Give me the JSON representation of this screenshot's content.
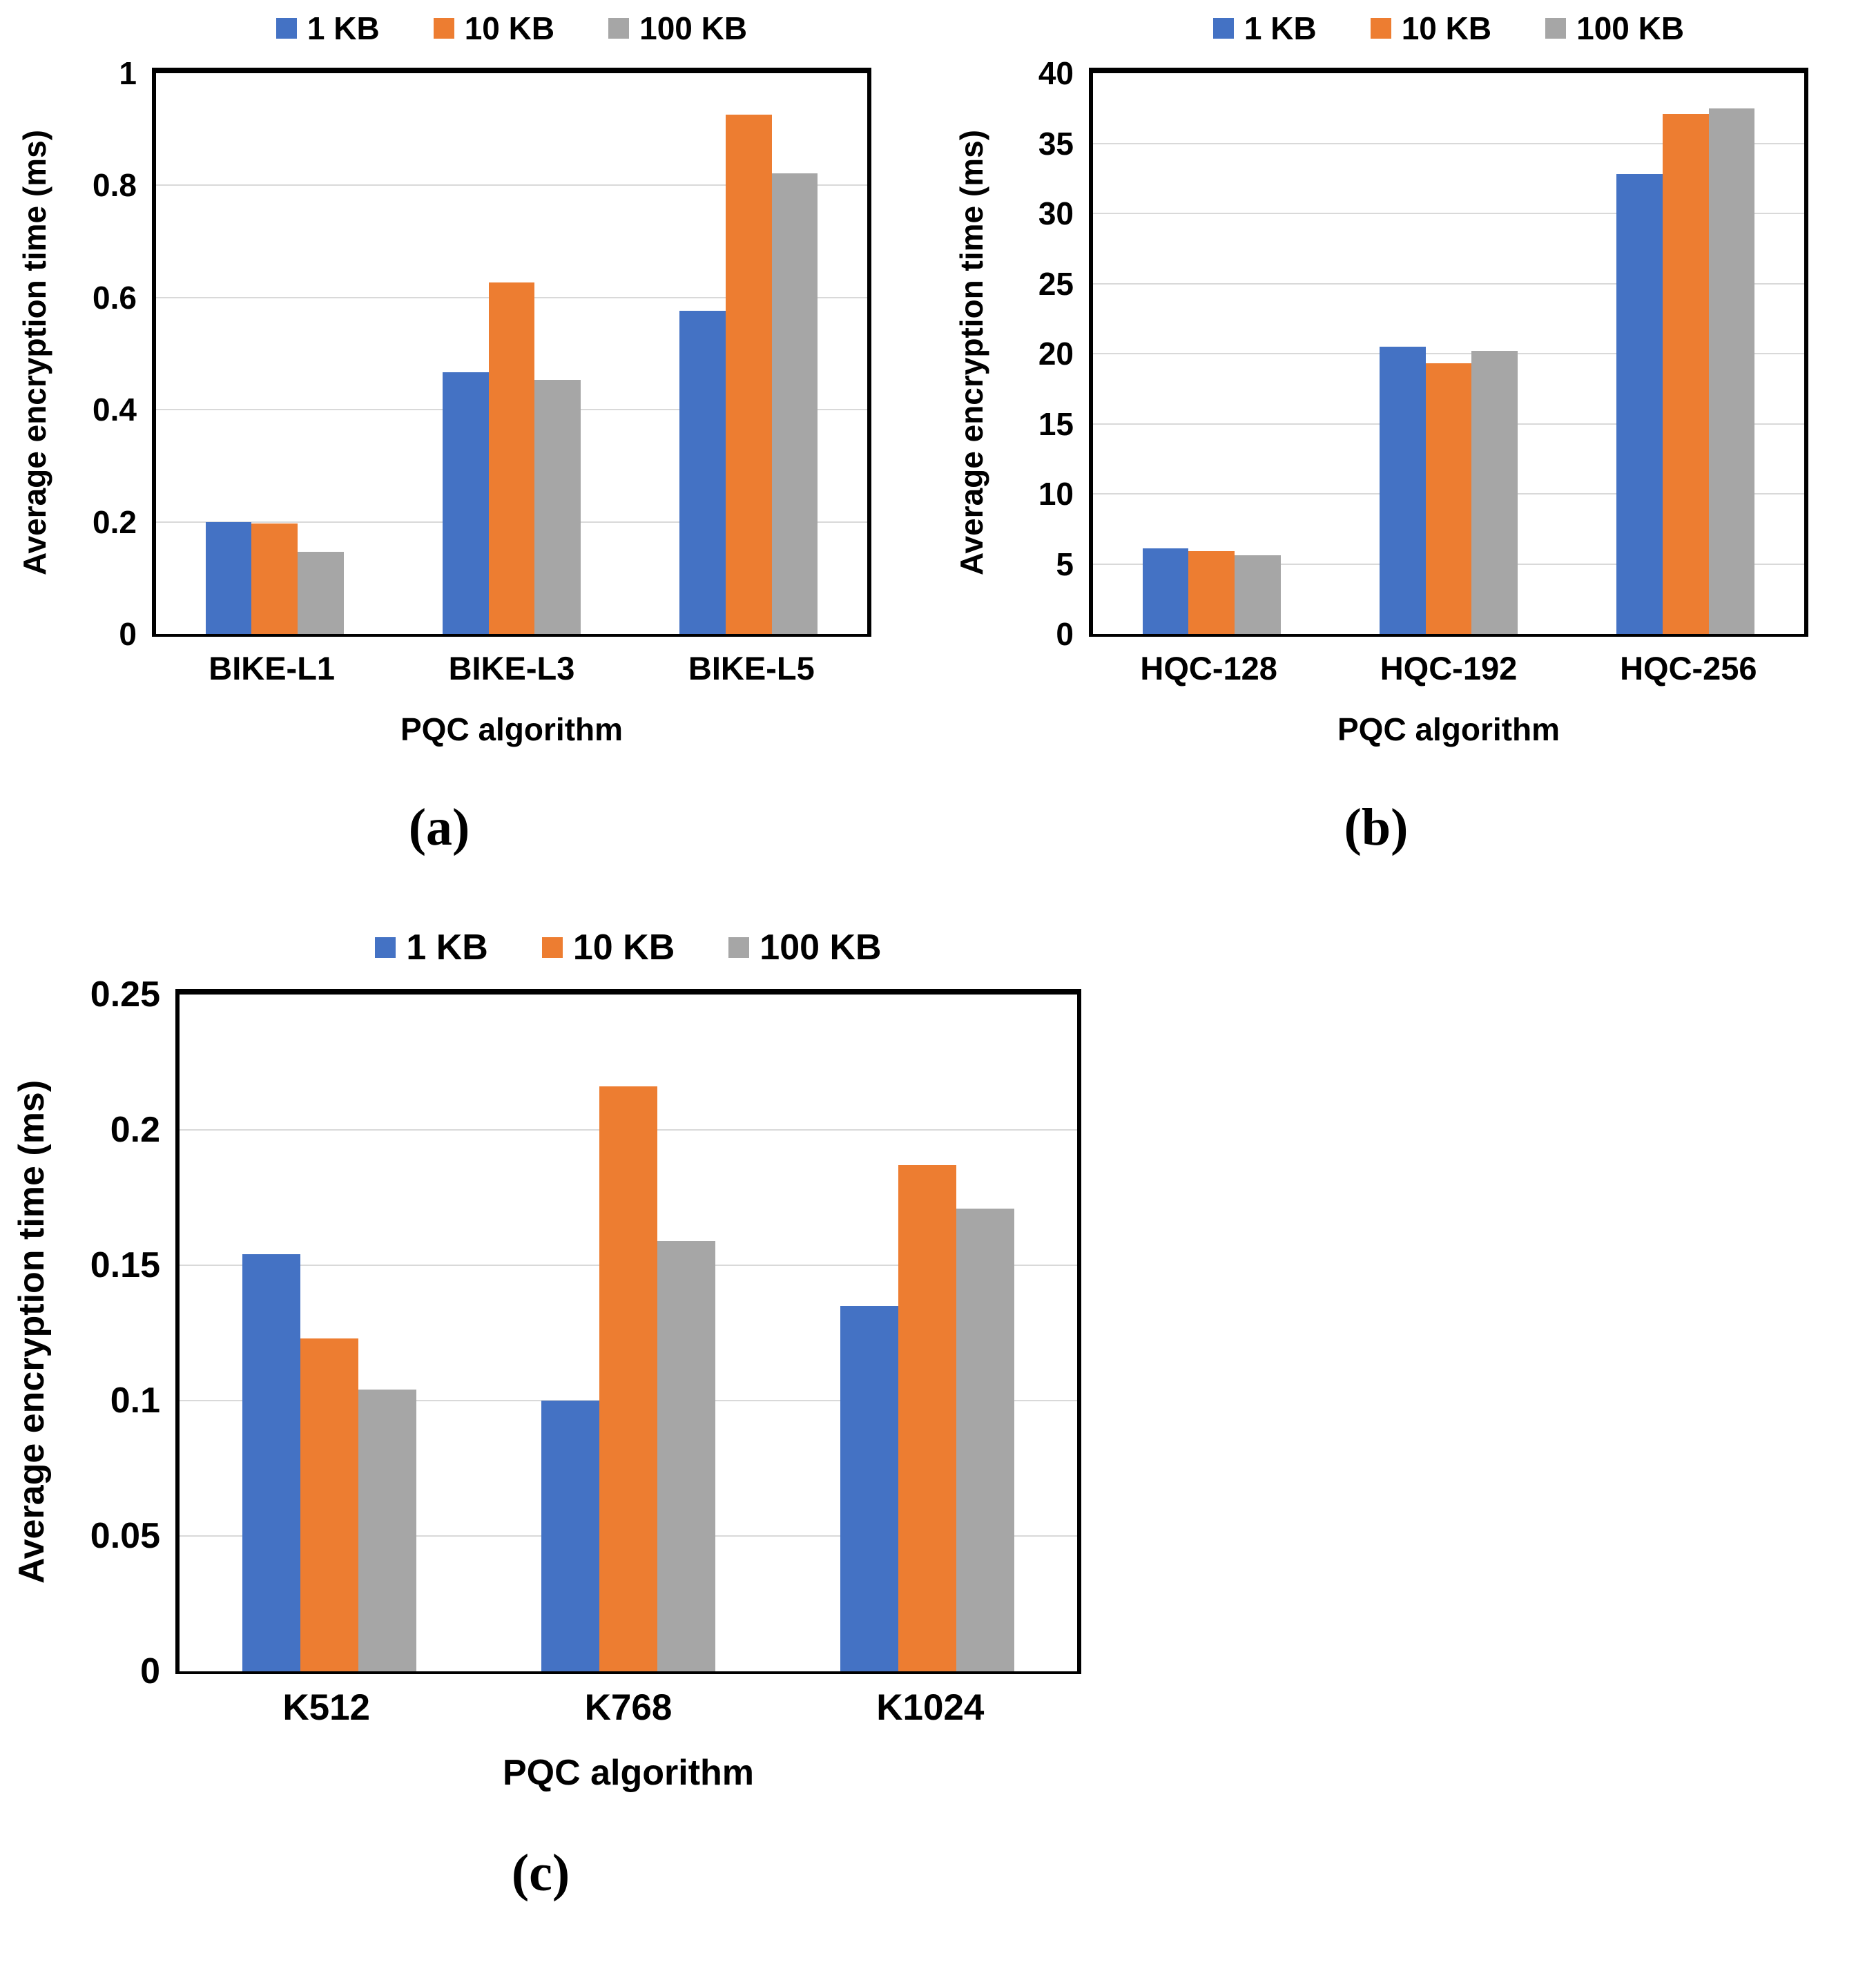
{
  "figure": {
    "background_color": "#ffffff",
    "frame_color": "#000000",
    "gridline_color": "#D9D9D9",
    "series_colors": {
      "1kb_blue": "#4472C4",
      "10kb_orange": "#ED7D31",
      "100kb_gray": "#A6A6A6"
    }
  },
  "chart_data": [
    {
      "id": "a",
      "type": "bar",
      "panel_label": "(a)",
      "title": "",
      "xlabel": "PQC algorithm",
      "ylabel": "Average encryption time (ms)",
      "categories": [
        "BIKE-L1",
        "BIKE-L3",
        "BIKE-L5"
      ],
      "series": [
        {
          "name": "1 KB",
          "color": "#4472C4",
          "values": [
            0.2,
            0.467,
            0.576
          ]
        },
        {
          "name": "10 KB",
          "color": "#ED7D31",
          "values": [
            0.197,
            0.627,
            0.926
          ]
        },
        {
          "name": "100 KB",
          "color": "#A6A6A6",
          "values": [
            0.146,
            0.453,
            0.821
          ]
        }
      ],
      "ylim": [
        0,
        1
      ],
      "yticks": [
        0,
        0.2,
        0.4,
        0.6,
        0.8,
        1
      ],
      "ytick_labels": [
        "0",
        "0.2",
        "0.4",
        "0.6",
        "0.8",
        "1"
      ],
      "grid": true,
      "legend_position": "top"
    },
    {
      "id": "b",
      "type": "bar",
      "panel_label": "(b)",
      "title": "",
      "xlabel": "PQC algorithm",
      "ylabel": "Average encryption time (ms)",
      "categories": [
        "HQC-128",
        "HQC-192",
        "HQC-256"
      ],
      "series": [
        {
          "name": "1 KB",
          "color": "#4472C4",
          "values": [
            6.1,
            20.5,
            32.8
          ]
        },
        {
          "name": "10 KB",
          "color": "#ED7D31",
          "values": [
            5.9,
            19.3,
            37.1
          ]
        },
        {
          "name": "100 KB",
          "color": "#A6A6A6",
          "values": [
            5.6,
            20.2,
            37.5
          ]
        }
      ],
      "ylim": [
        0,
        40
      ],
      "yticks": [
        0,
        5,
        10,
        15,
        20,
        25,
        30,
        35,
        40
      ],
      "ytick_labels": [
        "0",
        "5",
        "10",
        "15",
        "20",
        "25",
        "30",
        "35",
        "40"
      ],
      "grid": true,
      "legend_position": "top"
    },
    {
      "id": "c",
      "type": "bar",
      "panel_label": "(c)",
      "title": "",
      "xlabel": "PQC algorithm",
      "ylabel": "Average encryption time (ms)",
      "categories": [
        "K512",
        "K768",
        "K1024"
      ],
      "series": [
        {
          "name": "1 KB",
          "color": "#4472C4",
          "values": [
            0.154,
            0.1,
            0.135
          ]
        },
        {
          "name": "10 KB",
          "color": "#ED7D31",
          "values": [
            0.123,
            0.216,
            0.187
          ]
        },
        {
          "name": "100 KB",
          "color": "#A6A6A6",
          "values": [
            0.104,
            0.159,
            0.171
          ]
        }
      ],
      "ylim": [
        0,
        0.25
      ],
      "yticks": [
        0,
        0.05,
        0.1,
        0.15,
        0.2,
        0.25
      ],
      "ytick_labels": [
        "0",
        "0.05",
        "0.1",
        "0.15",
        "0.2",
        "0.25"
      ],
      "grid": true,
      "legend_position": "top"
    }
  ]
}
